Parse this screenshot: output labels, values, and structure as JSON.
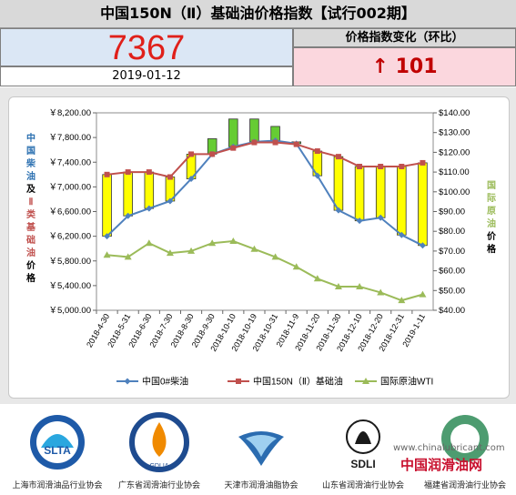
{
  "header": {
    "title": "中国150N（Ⅱ）基础油价格指数【试行002期】",
    "index_value": "7367",
    "date": "2019-01-12",
    "change_label": "价格指数变化（环比）",
    "change_value": "↑ 101"
  },
  "colors": {
    "rise_candle": "#ffff00",
    "fall_candle": "#66cc33",
    "china_diesel_line": "#4f81bd",
    "base_oil_line": "#c0504d",
    "wti_line": "#9bbb59",
    "change_text": "#c00000",
    "index_text": "#e0201a"
  },
  "chart_data": {
    "type": "line",
    "categories": [
      "2018-4-30",
      "2018-5-31",
      "2018-6-30",
      "2018-7-30",
      "2018-8-30",
      "2018-9-30",
      "2018-10-10",
      "2018-10-19",
      "2018-10-31",
      "2018-11-9",
      "2018-11-20",
      "2018-11-30",
      "2018-12-10",
      "2018-12-20",
      "2018-12-31",
      "2019-1-11"
    ],
    "y_left": {
      "ticks": [
        "￥5,000.00",
        "￥5,400.00",
        "￥5,800.00",
        "￥6,200.00",
        "￥6,600.00",
        "￥7,000.00",
        "￥7,400.00",
        "￥7,800.00",
        "￥8,200.00"
      ],
      "lim": [
        5000,
        8200
      ],
      "label": "中国柴油及Ⅱ类基础油价格"
    },
    "y_right": {
      "ticks": [
        "$40.00",
        "$50.00",
        "$60.00",
        "$70.00",
        "$80.00",
        "$90.00",
        "$100.00",
        "$110.00",
        "$120.00",
        "$130.00",
        "$140.00"
      ],
      "lim": [
        40,
        140
      ],
      "label": "国际原油价格"
    },
    "series": [
      {
        "name": "中国0#柴油",
        "axis": "left",
        "values": [
          6200,
          6530,
          6650,
          6770,
          7130,
          7530,
          7650,
          7730,
          7750,
          7700,
          7180,
          6620,
          6450,
          6500,
          6220,
          6050
        ]
      },
      {
        "name": "中国150N（Ⅱ）基础油",
        "axis": "left",
        "values": [
          7200,
          7240,
          7240,
          7160,
          7530,
          7530,
          7630,
          7720,
          7720,
          7690,
          7580,
          7490,
          7330,
          7330,
          7330,
          7390
        ]
      },
      {
        "name": "国际原油WTI",
        "axis": "right",
        "values": [
          68,
          67,
          74,
          69,
          70,
          74,
          75,
          71,
          67,
          62,
          56,
          52,
          52,
          49,
          45,
          48
        ]
      }
    ],
    "candles": [
      {
        "low": 6200,
        "high": 7200
      },
      {
        "low": 6530,
        "high": 7240
      },
      {
        "low": 6650,
        "high": 7240
      },
      {
        "low": 6770,
        "high": 7160
      },
      {
        "low": 7130,
        "high": 7530
      },
      {
        "low": 7530,
        "high": 7780
      },
      {
        "low": 7650,
        "high": 8100
      },
      {
        "low": 7730,
        "high": 8100
      },
      {
        "low": 7750,
        "high": 7980
      },
      {
        "low": 7700,
        "high": 7730
      },
      {
        "low": 7180,
        "high": 7580
      },
      {
        "low": 6620,
        "high": 7490
      },
      {
        "low": 6450,
        "high": 7330
      },
      {
        "low": 6500,
        "high": 7330
      },
      {
        "low": 6220,
        "high": 7330
      },
      {
        "low": 6050,
        "high": 7390
      }
    ],
    "candle_colors": [
      "rise",
      "rise",
      "rise",
      "rise",
      "rise",
      "fall",
      "fall",
      "fall",
      "fall",
      "fall",
      "rise",
      "rise",
      "rise",
      "rise",
      "rise",
      "rise"
    ],
    "legend": "bottom"
  },
  "footer": {
    "logos": [
      {
        "icon": "slta-logo",
        "caption": "上海市润滑油品行业协会"
      },
      {
        "icon": "gdlia-logo",
        "caption": "广东省润滑油行业协会"
      },
      {
        "icon": "tianjin-logo",
        "caption": "天津市润滑油脂协会"
      },
      {
        "icon": "sdli-logo",
        "caption": "山东省润滑油行业协会"
      },
      {
        "icon": "fujian-logo",
        "caption": "福建省润滑油行业协会"
      }
    ],
    "watermark_url": "www.chinalubricant.com",
    "watermark_name": "中国润滑油网"
  }
}
